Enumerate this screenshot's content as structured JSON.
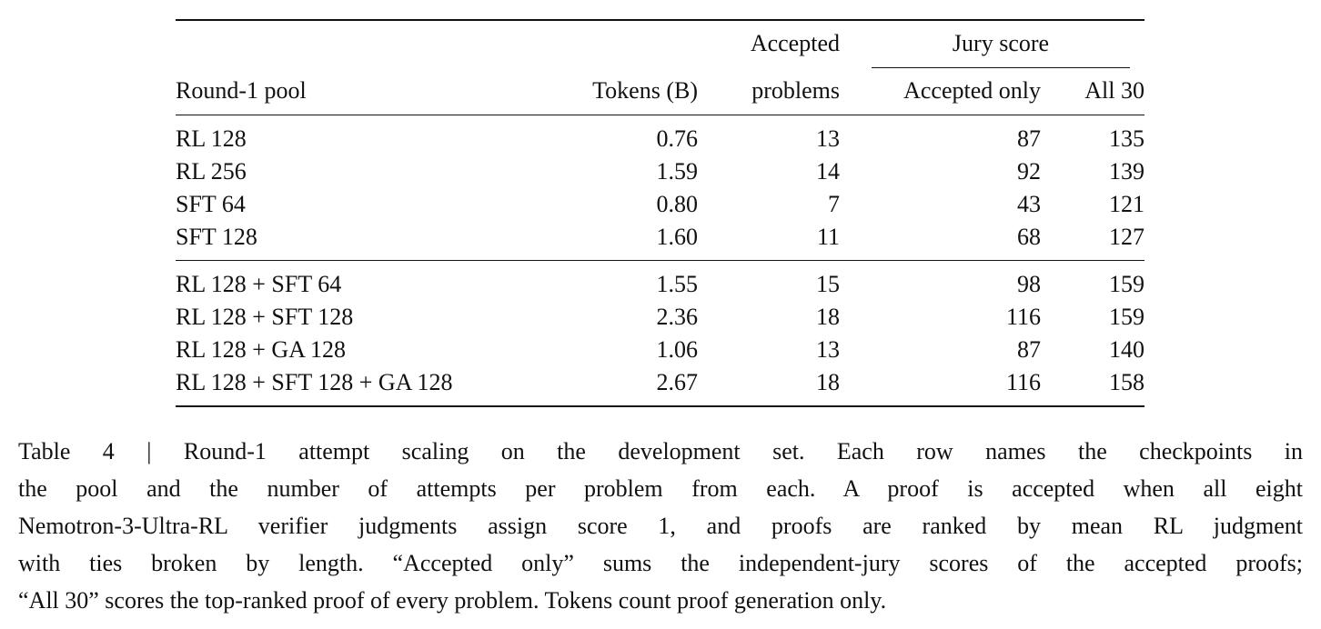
{
  "table": {
    "group_header": "Jury score",
    "columns": [
      "Round-1 pool",
      "Tokens (B)",
      [
        "Accepted",
        "problems"
      ],
      "Accepted only",
      "All 30"
    ],
    "sections": [
      [
        [
          "RL 128",
          "0.76",
          "13",
          "87",
          "135"
        ],
        [
          "RL 256",
          "1.59",
          "14",
          "92",
          "139"
        ],
        [
          "SFT 64",
          "0.80",
          "7",
          "43",
          "121"
        ],
        [
          "SFT 128",
          "1.60",
          "11",
          "68",
          "127"
        ]
      ],
      [
        [
          "RL 128 + SFT 64",
          "1.55",
          "15",
          "98",
          "159"
        ],
        [
          "RL 128 + SFT 128",
          "2.36",
          "18",
          "116",
          "159"
        ],
        [
          "RL 128 + GA 128",
          "1.06",
          "13",
          "87",
          "140"
        ],
        [
          "RL 128 + SFT 128 + GA 128",
          "2.67",
          "18",
          "116",
          "158"
        ]
      ]
    ]
  },
  "caption": [
    "Table 4 | Round-1 attempt scaling on the development set. Each row names the checkpoints in",
    "the pool and the number of attempts per problem from each. A proof is accepted when all eight",
    "Nemotron-3-Ultra-RL verifier judgments assign score 1, and proofs are ranked by mean RL judgment",
    "with ties broken by length. “Accepted only” sums the independent-jury scores of the accepted proofs;",
    "“All 30” scores the top-ranked proof of every problem. Tokens count proof generation only."
  ]
}
